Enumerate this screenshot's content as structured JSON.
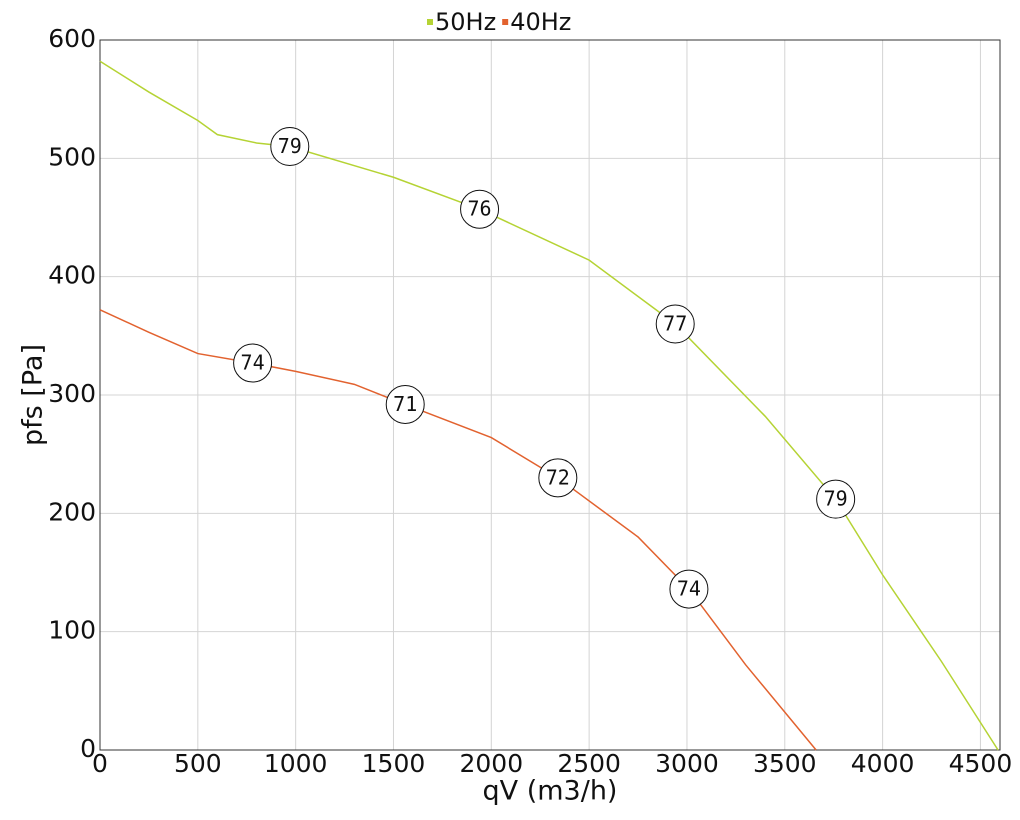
{
  "chart_data": {
    "type": "line",
    "x_label": "qV (m3/h)",
    "y_label": "pfs [Pa]",
    "xlim": [
      0,
      4600
    ],
    "ylim": [
      0,
      600
    ],
    "xticks": [
      0,
      500,
      1000,
      1500,
      2000,
      2500,
      3000,
      3500,
      4000,
      4500
    ],
    "yticks": [
      0,
      100,
      200,
      300,
      400,
      500,
      600
    ],
    "grid": true,
    "legend": "top",
    "series": [
      {
        "name": "50Hz",
        "color": "#b5d334",
        "x": [
          0,
          250,
          500,
          600,
          800,
          970,
          1500,
          1940,
          2500,
          2940,
          3400,
          3760,
          4000,
          4300,
          4590
        ],
        "values": [
          582,
          556,
          532,
          520,
          513,
          510,
          484,
          457,
          414,
          360,
          282,
          212,
          148,
          75,
          0
        ],
        "annotations": [
          {
            "x": 970,
            "y": 510,
            "label": 79
          },
          {
            "x": 1940,
            "y": 457,
            "label": 76
          },
          {
            "x": 2940,
            "y": 360,
            "label": 77
          },
          {
            "x": 3760,
            "y": 212,
            "label": 79
          }
        ]
      },
      {
        "name": "40Hz",
        "color": "#e2622f",
        "x": [
          0,
          250,
          500,
          780,
          1000,
          1300,
          1560,
          2000,
          2340,
          2750,
          3010,
          3300,
          3660
        ],
        "values": [
          372,
          353,
          335,
          327,
          320,
          309,
          292,
          264,
          230,
          180,
          136,
          72,
          0
        ],
        "annotations": [
          {
            "x": 780,
            "y": 327,
            "label": 74
          },
          {
            "x": 1560,
            "y": 292,
            "label": 71
          },
          {
            "x": 2340,
            "y": 230,
            "label": 72
          },
          {
            "x": 3010,
            "y": 136,
            "label": 74
          }
        ]
      }
    ]
  }
}
